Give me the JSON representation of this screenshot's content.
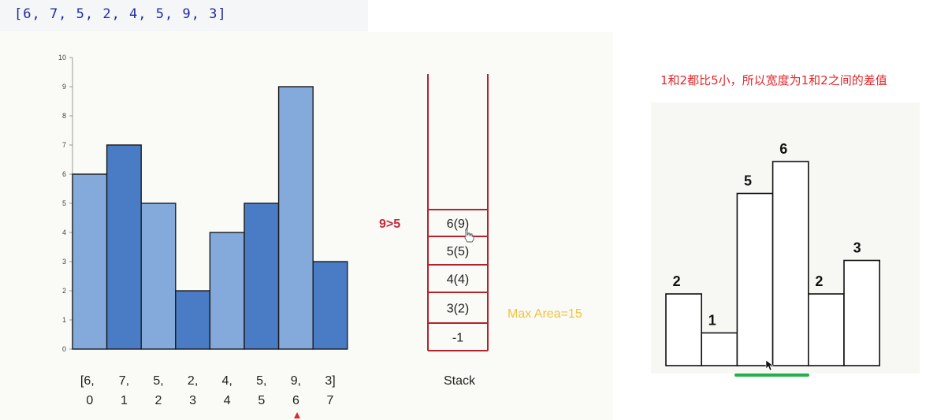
{
  "code": {
    "array_text": "[6, 7, 5, 2, 4, 5, 9, 3]"
  },
  "chart_data": [
    {
      "type": "bar",
      "categories": [
        "[6,\n0",
        "7,\n1",
        "5,\n2",
        "2,\n3",
        "4,\n4",
        "5,\n5",
        "9,\n6",
        "3]\n7"
      ],
      "cat_top": [
        "[6,",
        "7,",
        "5,",
        "2,",
        "4,",
        "5,",
        "9,",
        "3]"
      ],
      "cat_bottom": [
        "0",
        "1",
        "2",
        "3",
        "4",
        "5",
        "6",
        "7"
      ],
      "values": [
        6,
        7,
        5,
        2,
        4,
        5,
        9,
        3
      ],
      "colors": [
        "#84aadb",
        "#4a7cc5",
        "#84aadb",
        "#4a7cc5",
        "#84aadb",
        "#4a7cc5",
        "#84aadb",
        "#4a7cc5"
      ],
      "ylim": [
        0,
        10
      ],
      "yticks": [
        0,
        1,
        2,
        3,
        4,
        5,
        6,
        7,
        8,
        9,
        10
      ],
      "title": "",
      "xlabel": "",
      "ylabel": ""
    },
    {
      "type": "bar",
      "values": [
        2,
        1,
        5,
        6,
        2,
        3
      ],
      "data_labels": [
        "2",
        "1",
        "5",
        "6",
        "2",
        "3"
      ],
      "fill": "#ffffff",
      "title": "",
      "xlabel": "",
      "ylabel": ""
    }
  ],
  "stack": {
    "label": "Stack",
    "items_top_to_bottom": [
      "6(9)",
      "5(5)",
      "4(4)",
      "3(2)",
      "-1"
    ],
    "compare_label": "9>5",
    "max_area_label": "Max Area=15",
    "stroke_color": "#b0242e"
  },
  "note": {
    "text": "1和2都比5小，所以宽度为1和2之间的差值"
  },
  "colors": {
    "note": "#e0262a",
    "highlight_line": "#22b14c",
    "compare": "#c0283c",
    "max_area": "#f2c33a"
  }
}
